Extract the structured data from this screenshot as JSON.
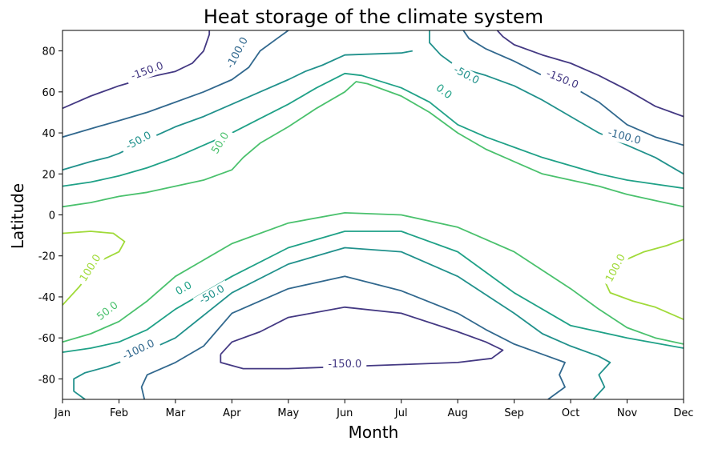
{
  "chart_data": {
    "type": "contour",
    "title": "Heat storage of the climate system",
    "xlabel": "Month",
    "ylabel": "Latitude",
    "x_ticks": [
      "Jan",
      "Feb",
      "Mar",
      "Apr",
      "May",
      "Jun",
      "Jul",
      "Aug",
      "Sep",
      "Oct",
      "Nov",
      "Dec"
    ],
    "y_ticks": [
      80,
      60,
      40,
      20,
      0,
      -20,
      -40,
      -60,
      -80
    ],
    "xlim": [
      0,
      11
    ],
    "ylim": [
      -90,
      90
    ],
    "grid": false,
    "levels": [
      {
        "value": -150,
        "color": "#443983"
      },
      {
        "value": -100,
        "color": "#31688e"
      },
      {
        "value": -50,
        "color": "#21918c"
      },
      {
        "value": 0,
        "color": "#1fa187"
      },
      {
        "value": 50,
        "color": "#4ac16d"
      },
      {
        "value": 100,
        "color": "#a0da39"
      }
    ],
    "contours": [
      {
        "level": -150,
        "color": "#443983",
        "points": [
          [
            0,
            52
          ],
          [
            0.5,
            58
          ],
          [
            1,
            63
          ],
          [
            1.5,
            67
          ],
          [
            2,
            70
          ],
          [
            2.3,
            74
          ],
          [
            2.5,
            80
          ],
          [
            2.6,
            88
          ],
          [
            2.6,
            90
          ]
        ]
      },
      {
        "level": -150,
        "color": "#443983",
        "points": [
          [
            7.7,
            90
          ],
          [
            7.8,
            87
          ],
          [
            8,
            83
          ],
          [
            8.5,
            78
          ],
          [
            9,
            74
          ],
          [
            9.5,
            68
          ],
          [
            10,
            61
          ],
          [
            10.5,
            53
          ],
          [
            11,
            48
          ]
        ]
      },
      {
        "level": -150,
        "color": "#443983",
        "points": [
          [
            2.8,
            -68
          ],
          [
            3,
            -62
          ],
          [
            3.5,
            -57
          ],
          [
            4,
            -50
          ],
          [
            5,
            -45
          ],
          [
            6,
            -48
          ],
          [
            7,
            -57
          ],
          [
            7.5,
            -62
          ],
          [
            7.8,
            -66
          ],
          [
            7.6,
            -70
          ],
          [
            7,
            -72
          ],
          [
            6,
            -73
          ],
          [
            5,
            -74
          ],
          [
            4,
            -75
          ],
          [
            3.2,
            -75
          ],
          [
            2.8,
            -72
          ],
          [
            2.8,
            -68
          ]
        ]
      },
      {
        "level": -100,
        "color": "#31688e",
        "points": [
          [
            0,
            38
          ],
          [
            0.5,
            42
          ],
          [
            1,
            46
          ],
          [
            1.5,
            50
          ],
          [
            2,
            55
          ],
          [
            2.5,
            60
          ],
          [
            3,
            66
          ],
          [
            3.3,
            72
          ],
          [
            3.5,
            80
          ],
          [
            3.8,
            86
          ],
          [
            4,
            90
          ]
        ]
      },
      {
        "level": -100,
        "color": "#31688e",
        "points": [
          [
            7.1,
            90
          ],
          [
            7.2,
            86
          ],
          [
            7.5,
            81
          ],
          [
            8,
            75
          ],
          [
            8.5,
            68
          ],
          [
            9,
            63
          ],
          [
            9.5,
            55
          ],
          [
            10,
            44
          ],
          [
            10.5,
            38
          ],
          [
            11,
            34
          ]
        ]
      },
      {
        "level": -100,
        "color": "#31688e",
        "points": [
          [
            1.45,
            -90
          ],
          [
            1.4,
            -84
          ],
          [
            1.5,
            -78
          ],
          [
            2,
            -72
          ],
          [
            2.5,
            -64
          ],
          [
            3,
            -48
          ],
          [
            4,
            -36
          ],
          [
            5,
            -30
          ],
          [
            6,
            -37
          ],
          [
            7,
            -48
          ],
          [
            7.5,
            -56
          ],
          [
            8,
            -63
          ],
          [
            8.5,
            -68
          ],
          [
            8.9,
            -72
          ],
          [
            8.8,
            -78
          ],
          [
            8.9,
            -84
          ],
          [
            8.6,
            -90
          ]
        ]
      },
      {
        "level": -50,
        "color": "#21918c",
        "points": [
          [
            0,
            22
          ],
          [
            0.5,
            26
          ],
          [
            0.8,
            28
          ],
          [
            1,
            30
          ],
          [
            1.3,
            34
          ],
          [
            1.6,
            38
          ],
          [
            2,
            43
          ],
          [
            2.5,
            48
          ],
          [
            3,
            54
          ],
          [
            3.5,
            60
          ],
          [
            4,
            66
          ],
          [
            4.3,
            70
          ],
          [
            4.6,
            73
          ],
          [
            5,
            78
          ],
          [
            6,
            79
          ],
          [
            6.2,
            80
          ]
        ]
      },
      {
        "level": -50,
        "color": "#21918c",
        "points": [
          [
            6.5,
            90
          ],
          [
            6.5,
            84
          ],
          [
            6.7,
            78
          ],
          [
            7,
            72
          ],
          [
            7.5,
            68
          ],
          [
            8,
            63
          ],
          [
            8.5,
            56
          ],
          [
            9,
            48
          ],
          [
            9.5,
            40
          ],
          [
            10,
            34
          ],
          [
            10.5,
            28
          ],
          [
            11,
            20
          ]
        ]
      },
      {
        "level": -50,
        "color": "#21918c",
        "points": [
          [
            0.4,
            -90
          ],
          [
            0.2,
            -86
          ],
          [
            0.2,
            -80
          ],
          [
            0.4,
            -77
          ],
          [
            0.8,
            -74
          ],
          [
            1.2,
            -70
          ],
          [
            2,
            -60
          ],
          [
            3,
            -38
          ],
          [
            4,
            -24
          ],
          [
            5,
            -16
          ],
          [
            6,
            -18
          ],
          [
            7,
            -30
          ],
          [
            8,
            -48
          ],
          [
            8.5,
            -58
          ],
          [
            9,
            -64
          ],
          [
            9.5,
            -69
          ],
          [
            9.7,
            -72
          ],
          [
            9.5,
            -78
          ],
          [
            9.6,
            -84
          ],
          [
            9.4,
            -90
          ]
        ]
      },
      {
        "level": 0,
        "color": "#1fa187",
        "points": [
          [
            0,
            14
          ],
          [
            0.5,
            16
          ],
          [
            1,
            19
          ],
          [
            1.5,
            23
          ],
          [
            2,
            28
          ],
          [
            2.5,
            34
          ],
          [
            3,
            40
          ],
          [
            3.5,
            47
          ],
          [
            4,
            54
          ],
          [
            4.5,
            62
          ],
          [
            5,
            69
          ],
          [
            5.3,
            68
          ],
          [
            6,
            62
          ],
          [
            6.5,
            55
          ],
          [
            7,
            44
          ],
          [
            7.5,
            38
          ],
          [
            8,
            33
          ],
          [
            8.5,
            28
          ],
          [
            9,
            24
          ],
          [
            9.5,
            20
          ],
          [
            10,
            17
          ],
          [
            10.5,
            15
          ],
          [
            11,
            13
          ]
        ]
      },
      {
        "level": 0,
        "color": "#1fa187",
        "points": [
          [
            0,
            -67
          ],
          [
            0.5,
            -65
          ],
          [
            1,
            -62
          ],
          [
            1.5,
            -56
          ],
          [
            2,
            -46
          ],
          [
            3,
            -30
          ],
          [
            4,
            -16
          ],
          [
            5,
            -8
          ],
          [
            6,
            -8
          ],
          [
            7,
            -18
          ],
          [
            8,
            -38
          ],
          [
            9,
            -54
          ],
          [
            10,
            -60
          ],
          [
            11,
            -65
          ]
        ]
      },
      {
        "level": 50,
        "color": "#4ac16d",
        "points": [
          [
            0,
            4
          ],
          [
            0.5,
            6
          ],
          [
            1,
            9
          ],
          [
            1.5,
            11
          ],
          [
            2,
            14
          ],
          [
            2.5,
            17
          ],
          [
            3,
            22
          ],
          [
            3.2,
            28
          ],
          [
            3.5,
            35
          ],
          [
            4,
            43
          ],
          [
            4.5,
            52
          ],
          [
            5,
            60
          ],
          [
            5.2,
            65
          ],
          [
            5.4,
            64
          ],
          [
            6,
            58
          ],
          [
            6.5,
            50
          ],
          [
            7,
            40
          ],
          [
            7.5,
            32
          ],
          [
            8,
            26
          ],
          [
            8.5,
            20
          ],
          [
            9,
            17
          ],
          [
            9.5,
            14
          ],
          [
            10,
            10
          ],
          [
            10.5,
            7
          ],
          [
            11,
            4
          ]
        ]
      },
      {
        "level": 50,
        "color": "#4ac16d",
        "points": [
          [
            0,
            -62
          ],
          [
            0.5,
            -58
          ],
          [
            1,
            -52
          ],
          [
            1.5,
            -42
          ],
          [
            2,
            -30
          ],
          [
            3,
            -14
          ],
          [
            4,
            -4
          ],
          [
            5,
            1
          ],
          [
            6,
            0
          ],
          [
            7,
            -6
          ],
          [
            8,
            -18
          ],
          [
            9,
            -36
          ],
          [
            9.5,
            -46
          ],
          [
            10,
            -55
          ],
          [
            10.5,
            -60
          ],
          [
            11,
            -63
          ]
        ]
      },
      {
        "level": 100,
        "color": "#a0da39",
        "points": [
          [
            0,
            -9
          ],
          [
            0.5,
            -8
          ],
          [
            0.9,
            -9
          ],
          [
            1.1,
            -13
          ],
          [
            1,
            -18
          ],
          [
            0.7,
            -22
          ],
          [
            0.5,
            -28
          ],
          [
            0.3,
            -35
          ],
          [
            0,
            -44
          ]
        ]
      },
      {
        "level": 100,
        "color": "#a0da39",
        "points": [
          [
            11,
            -12
          ],
          [
            10.7,
            -15
          ],
          [
            10.3,
            -18
          ],
          [
            9.8,
            -24
          ],
          [
            9.6,
            -32
          ],
          [
            9.7,
            -38
          ],
          [
            10.1,
            -42
          ],
          [
            10.5,
            -45
          ],
          [
            11,
            -51
          ]
        ]
      }
    ],
    "labels": [
      {
        "text": "-150.0",
        "x": 1.5,
        "y": 70,
        "rotate": -20,
        "color": "#443983"
      },
      {
        "text": "-100.0",
        "x": 3.1,
        "y": 79,
        "rotate": -62,
        "color": "#31688e"
      },
      {
        "text": "-50.0",
        "x": 1.35,
        "y": 36,
        "rotate": -28,
        "color": "#21918c"
      },
      {
        "text": "50.0",
        "x": 2.8,
        "y": 35,
        "rotate": -58,
        "color": "#4ac16d"
      },
      {
        "text": "-50.0",
        "x": 7.15,
        "y": 68,
        "rotate": 28,
        "color": "#21918c"
      },
      {
        "text": "0.0",
        "x": 6.75,
        "y": 60,
        "rotate": 38,
        "color": "#1fa187"
      },
      {
        "text": "-150.0",
        "x": 8.85,
        "y": 66,
        "rotate": 22,
        "color": "#443983"
      },
      {
        "text": "-100.0",
        "x": 9.95,
        "y": 38,
        "rotate": 15,
        "color": "#31688e"
      },
      {
        "text": "100.0",
        "x": 0.5,
        "y": -26,
        "rotate": -58,
        "color": "#a0da39"
      },
      {
        "text": "50.0",
        "x": 0.8,
        "y": -47,
        "rotate": -38,
        "color": "#4ac16d"
      },
      {
        "text": "0.0",
        "x": 2.15,
        "y": -36,
        "rotate": -30,
        "color": "#1fa187"
      },
      {
        "text": "-50.0",
        "x": 2.65,
        "y": -39,
        "rotate": -30,
        "color": "#21918c"
      },
      {
        "text": "-100.0",
        "x": 1.35,
        "y": -66,
        "rotate": -25,
        "color": "#31688e"
      },
      {
        "text": "-150.0",
        "x": 5.0,
        "y": -73,
        "rotate": 0,
        "color": "#443983"
      },
      {
        "text": "100.0",
        "x": 9.8,
        "y": -26,
        "rotate": -62,
        "color": "#a0da39"
      }
    ]
  }
}
